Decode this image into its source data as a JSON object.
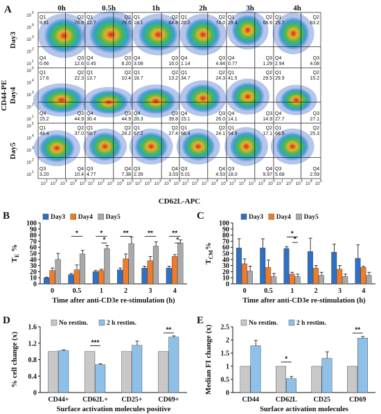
{
  "panel_labels": {
    "a": "A",
    "b": "B",
    "c": "C",
    "d": "D",
    "e": "E"
  },
  "panelA": {
    "times": [
      "0h",
      "0.5h",
      "1h",
      "2h",
      "3h",
      "4h"
    ],
    "days": [
      "Day3",
      "Day4",
      "Day5"
    ],
    "ylabel": "CD44-PE",
    "xlabel": "CD62L-APC",
    "yticks": [
      "10",
      "10",
      "10",
      "10",
      "10"
    ],
    "ytick_exps": [
      "1",
      "2",
      "3",
      "4",
      "5"
    ],
    "xticks": [
      "10",
      "10",
      "10",
      "10",
      "10"
    ],
    "xtick_exps": [
      "1",
      "2",
      "3",
      "4",
      "5"
    ],
    "quadrant_names": [
      "Q1",
      "Q2",
      "Q3",
      "Q4"
    ],
    "rows": [
      {
        "quadrants": [
          "Q1",
          "Q2",
          "Q4",
          "Q3"
        ],
        "cells": [
          {
            "q1": "9.91",
            "q2": "76.8",
            "q4": "0.66",
            "q3": "12.6"
          },
          {
            "q1": "12.7",
            "q2": "78.6",
            "q4": "0.45",
            "q3": "8.20"
          },
          {
            "q1": "16.1",
            "q2": "64.8",
            "q4": "3.08",
            "q3": "16.0"
          },
          {
            "q1": "20.0",
            "q2": "74.0",
            "q4": "1.14",
            "q3": "4.84"
          },
          {
            "q1": "29.4",
            "q2": "68.6",
            "q4": "0.77",
            "q3": "1.29"
          },
          {
            "q1": "29.7",
            "q2": "63.2",
            "q4": "2.94",
            "q3": "4.08"
          }
        ]
      },
      {
        "quadrants": [
          "Q1",
          "Q2",
          "Q4",
          "Q3"
        ],
        "cells": [
          {
            "q1": "17.6",
            "q2": "22.3",
            "q4": "15.2",
            "q3": "44.9"
          },
          {
            "q1": "13.7",
            "q2": "10.4",
            "q4": "30.4",
            "q3": "44.9"
          },
          {
            "q1": "18.7",
            "q2": "13.2",
            "q4": "28.3",
            "q3": "39.8"
          },
          {
            "q1": "34.7",
            "q2": "24.3",
            "q4": "15.1",
            "q3": "26.0"
          },
          {
            "q1": "41.5",
            "q2": "29.5",
            "q4": "14.1",
            "q3": "14.9"
          },
          {
            "q1": "29.9",
            "q2": "15.2",
            "q4": "27.7",
            "q3": "27.1"
          }
        ]
      },
      {
        "quadrants": [
          "Q1",
          "Q2",
          "Q3",
          "Q4"
        ],
        "cells": [
          {
            "q1": "49.4",
            "q2": "37.0",
            "q4": "10.4",
            "q3": "3.20"
          },
          {
            "q1": "59.7",
            "q2": "28.2",
            "q4": "7.38",
            "q3": "4.77"
          },
          {
            "q1": "67.2",
            "q2": "27.4",
            "q4": "3.03",
            "q3": "2.39"
          },
          {
            "q1": "66.4",
            "q2": "24.1",
            "q4": "4.53",
            "q3": "5.01"
          },
          {
            "q1": "54.9",
            "q2": "17.1",
            "q4": "9.97",
            "q3": "18.0"
          },
          {
            "q1": "66.5",
            "q2": "25.3",
            "q4": "2.59",
            "q3": "5.68"
          }
        ]
      }
    ]
  },
  "chart_data": [
    {
      "panel": "B",
      "type": "bar",
      "categories": [
        "0",
        "0.5",
        "1",
        "2",
        "3",
        "4"
      ],
      "series": [
        {
          "name": "Day3",
          "color": "#2f6fc4",
          "values": [
            10,
            15,
            20,
            23,
            26,
            26
          ],
          "errors": [
            1,
            2,
            2,
            3,
            3,
            3
          ]
        },
        {
          "name": "Day4",
          "color": "#f07c2a",
          "values": [
            22,
            23,
            22,
            41,
            38,
            45
          ],
          "errors": [
            4,
            8,
            2,
            8,
            7,
            3
          ]
        },
        {
          "name": "Day5",
          "color": "#a9a9a9",
          "values": [
            40,
            49,
            58,
            66,
            62,
            67
          ],
          "errors": [
            10,
            6,
            5,
            11,
            7,
            5
          ]
        }
      ],
      "ylabel": "T",
      "ylabel_sub": "E",
      "ylabel_unit": " %",
      "xlabel": "Time after anti-CD3e re-stimulation (h)",
      "yticks": [
        "0",
        "10",
        "20",
        "30",
        "40",
        "50",
        "60",
        "70",
        "80",
        "90",
        "100"
      ],
      "ylim": [
        0,
        100
      ],
      "significance": [
        {
          "from": [
            1,
            0
          ],
          "to": [
            1,
            2
          ],
          "label": "*",
          "y": 78
        },
        {
          "from": [
            2,
            0
          ],
          "to": [
            2,
            2
          ],
          "label": "*",
          "y": 78
        },
        {
          "from": [
            2,
            1
          ],
          "to": [
            2,
            2
          ],
          "label": "*",
          "y": 67
        },
        {
          "from": [
            3,
            0
          ],
          "to": [
            3,
            2
          ],
          "label": "**",
          "y": 78
        },
        {
          "from": [
            4,
            0
          ],
          "to": [
            4,
            2
          ],
          "label": "**",
          "y": 78
        },
        {
          "from": [
            5,
            0
          ],
          "to": [
            5,
            2
          ],
          "label": "**",
          "y": 78
        },
        {
          "from": [
            5,
            1
          ],
          "to": [
            5,
            2
          ],
          "label": "*",
          "y": 67
        }
      ],
      "legend": "top"
    },
    {
      "panel": "C",
      "type": "bar",
      "categories": [
        "0",
        "0.5",
        "1",
        "2",
        "3",
        "4"
      ],
      "series": [
        {
          "name": "Day3",
          "color": "#2f6fc4",
          "values": [
            59,
            59,
            58,
            53,
            52,
            42
          ],
          "errors": [
            15,
            15,
            3,
            22,
            13,
            22
          ]
        },
        {
          "name": "Day4",
          "color": "#f07c2a",
          "values": [
            33,
            27,
            16,
            26,
            24,
            27
          ],
          "errors": [
            8,
            12,
            3,
            4,
            6,
            2
          ]
        },
        {
          "name": "Day5",
          "color": "#a9a9a9",
          "values": [
            21,
            12,
            12,
            14,
            12,
            14
          ],
          "errors": [
            8,
            5,
            4,
            5,
            4,
            5
          ]
        }
      ],
      "ylabel": "T",
      "ylabel_sub": "CM",
      "ylabel_unit": "%",
      "xlabel": "Time after anti-CD3e re-stimulation (h)",
      "yticks": [
        "0",
        "10",
        "20",
        "30",
        "40",
        "50",
        "60",
        "70",
        "80",
        "90",
        "100"
      ],
      "ylim": [
        0,
        100
      ],
      "significance": [
        {
          "from": [
            2,
            0
          ],
          "to": [
            2,
            2
          ],
          "label": "*",
          "y": 77
        },
        {
          "from": [
            2,
            1
          ],
          "to": [
            2,
            2
          ],
          "label": "*",
          "y": 68
        }
      ],
      "legend": "top"
    },
    {
      "panel": "D",
      "type": "bar",
      "categories": [
        "CD44+",
        "CD62L+",
        "CD25+",
        "CD69+"
      ],
      "series": [
        {
          "name": "No restim.",
          "color": "#c8c8c8",
          "values": [
            1.0,
            1.0,
            1.0,
            1.0
          ],
          "errors": [
            0,
            0,
            0,
            0
          ]
        },
        {
          "name": "2 h restim.",
          "color": "#8ec0e8",
          "values": [
            1.02,
            0.68,
            1.15,
            1.35
          ],
          "errors": [
            0.02,
            0.02,
            0.1,
            0.03
          ]
        }
      ],
      "ylabel": "% cell change (x)",
      "xlabel": "Surface activation molecules positive",
      "yticks": [
        "0",
        "0.4",
        "0.8",
        "1.2",
        "1.6"
      ],
      "ylim": [
        0,
        1.6
      ],
      "significance": [
        {
          "from": [
            1,
            0
          ],
          "to": [
            1,
            1
          ],
          "label": "***",
          "y": 1.14
        },
        {
          "from": [
            3,
            0
          ],
          "to": [
            3,
            1
          ],
          "label": "**",
          "y": 1.45
        }
      ],
      "legend": "top"
    },
    {
      "panel": "E",
      "type": "bar",
      "categories": [
        "CD44",
        "CD62L",
        "CD25",
        "CD69"
      ],
      "series": [
        {
          "name": "No restim.",
          "color": "#c8c8c8",
          "values": [
            1.0,
            1.0,
            1.0,
            1.0
          ],
          "errors": [
            0,
            0,
            0,
            0
          ]
        },
        {
          "name": "2 h restim.",
          "color": "#8ec0e8",
          "values": [
            1.78,
            0.53,
            1.3,
            2.07
          ],
          "errors": [
            0.2,
            0.08,
            0.25,
            0.06
          ]
        }
      ],
      "ylabel": "Median FI change (x)",
      "xlabel": "Surface activation molecules",
      "yticks": [
        "0",
        "0.5",
        "1",
        "1.5",
        "2",
        "2.5"
      ],
      "ylim": [
        0,
        2.5
      ],
      "significance": [
        {
          "from": [
            1,
            0
          ],
          "to": [
            1,
            1
          ],
          "label": "*",
          "y": 1.16
        },
        {
          "from": [
            3,
            0
          ],
          "to": [
            3,
            1
          ],
          "label": "**",
          "y": 2.26
        }
      ],
      "legend": "top"
    }
  ]
}
